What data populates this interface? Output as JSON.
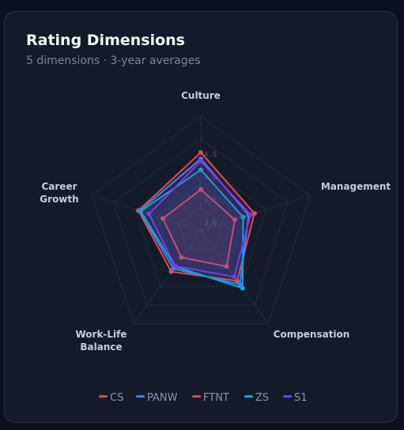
{
  "chart_data": {
    "type": "radar",
    "title": "Rating Dimensions",
    "subtitle": "5 dimensions · 3-year averages",
    "categories": [
      "Culture",
      "Management",
      "Compensation",
      "Work-Life Balance",
      "Career Growth"
    ],
    "series": [
      {
        "name": "CS",
        "color": "#e5484d",
        "values": [
          4.21,
          3.73,
          3.85,
          3.6,
          3.93
        ]
      },
      {
        "name": "PANW",
        "color": "#3b82f6",
        "values": [
          4.07,
          3.6,
          3.95,
          3.52,
          3.9
        ]
      },
      {
        "name": "FTNT",
        "color": "#e0455f",
        "values": [
          3.4,
          3.28,
          3.46,
          3.22,
          3.37
        ]
      },
      {
        "name": "ZS",
        "color": "#0ea5d9",
        "values": [
          3.83,
          3.47,
          4.05,
          3.46,
          3.88
        ]
      },
      {
        "name": "S1",
        "color": "#7c3aed",
        "values": [
          4.02,
          3.64,
          3.74,
          3.45,
          3.69
        ]
      }
    ],
    "rlim": [
      2.5,
      5
    ],
    "rticks": [
      {
        "value": 3,
        "label": "3.0"
      },
      3.5,
      {
        "value": 4,
        "label": "4.0"
      },
      4.5
    ]
  }
}
